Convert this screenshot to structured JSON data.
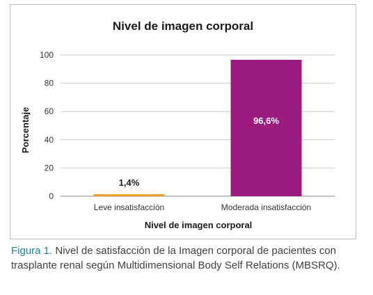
{
  "chart_data": {
    "type": "bar",
    "title": "Nivel de imagen corporal",
    "xlabel": "Nivel de imagen corporal",
    "ylabel": "Porcentaje",
    "categories": [
      "Leve insatisfacción",
      "Moderada insatisfacción"
    ],
    "values": [
      1.4,
      96.6
    ],
    "data_labels": [
      "1,4%",
      "96,6%"
    ],
    "colors": [
      "#f39c1f",
      "#9b1b7f"
    ],
    "data_label_colors": [
      "#1a1a1a",
      "#ffffff"
    ],
    "ylim": [
      0,
      100
    ],
    "yticks": [
      0,
      20,
      40,
      60,
      80,
      100
    ],
    "grid": true,
    "legend": "none"
  },
  "caption": {
    "figure_number": "Figura 1.",
    "text": " Nivel de satisfacción de la Imagen corporal de pacientes con trasplante renal según Multidimensional Body Self Relations (MBSRQ)."
  }
}
